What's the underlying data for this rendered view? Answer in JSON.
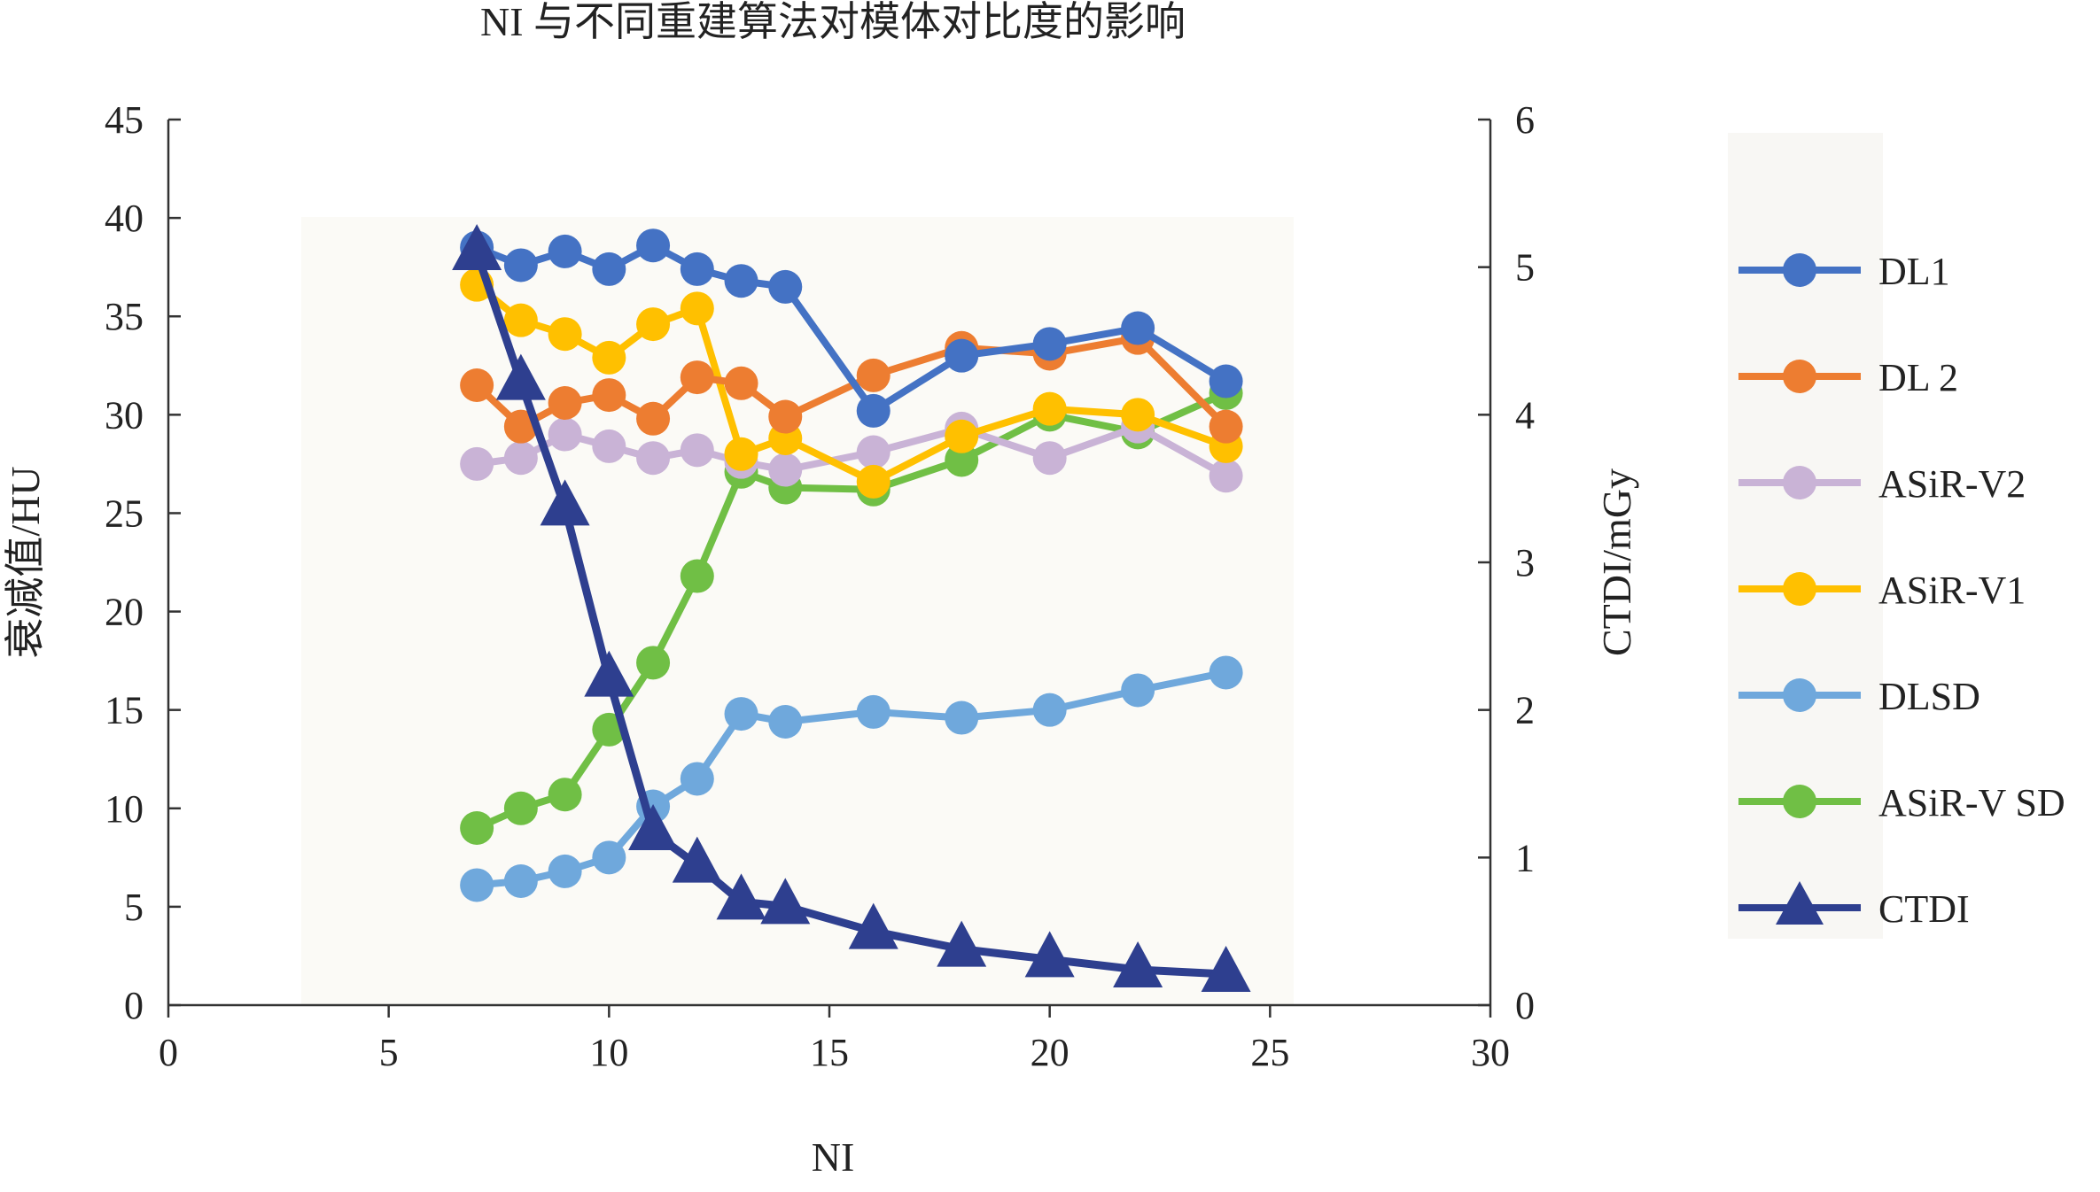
{
  "chart_data": {
    "type": "line",
    "title": "NI 与不同重建算法对模体对比度的影响",
    "xlabel": "NI",
    "ylabel": "衰减值/HU",
    "y2label": "CTDI/mGy",
    "xlim": [
      0,
      30
    ],
    "ylim": [
      0,
      45
    ],
    "y2lim": [
      0,
      6
    ],
    "xticks": [
      0,
      5,
      10,
      15,
      20,
      25,
      30
    ],
    "yticks": [
      0,
      5,
      10,
      15,
      20,
      25,
      30,
      35,
      40,
      45
    ],
    "y2ticks": [
      0,
      1,
      2,
      3,
      4,
      5,
      6
    ],
    "legend_position": "right",
    "grid": false,
    "series": [
      {
        "name": "DL1",
        "axis": "left",
        "marker": "circle",
        "color": "#4472C4",
        "x": [
          7,
          8,
          9,
          10,
          11,
          12,
          13,
          14,
          16,
          18,
          20,
          22,
          24
        ],
        "values": [
          38.5,
          37.6,
          38.3,
          37.4,
          38.6,
          37.4,
          36.8,
          36.5,
          30.2,
          33.0,
          33.6,
          34.4,
          31.7
        ]
      },
      {
        "name": "DL 2",
        "axis": "left",
        "marker": "circle",
        "color": "#ED7D31",
        "x": [
          7,
          8,
          9,
          10,
          11,
          12,
          13,
          14,
          16,
          18,
          20,
          22,
          24
        ],
        "values": [
          31.5,
          29.4,
          30.6,
          31.0,
          29.8,
          31.9,
          31.6,
          29.9,
          32.0,
          33.4,
          33.1,
          33.9,
          29.4
        ]
      },
      {
        "name": "ASiR-V2",
        "axis": "left",
        "marker": "circle",
        "color": "#C9B3D6",
        "x": [
          7,
          8,
          9,
          10,
          11,
          12,
          13,
          14,
          16,
          18,
          20,
          22,
          24
        ],
        "values": [
          27.5,
          27.8,
          29.0,
          28.4,
          27.8,
          28.2,
          27.6,
          27.2,
          28.1,
          29.3,
          27.8,
          29.4,
          26.9
        ]
      },
      {
        "name": "ASiR-V1",
        "axis": "left",
        "marker": "circle",
        "color": "#FFC000",
        "x": [
          7,
          8,
          9,
          10,
          11,
          12,
          13,
          14,
          16,
          18,
          20,
          22,
          24
        ],
        "values": [
          36.6,
          34.8,
          34.1,
          32.9,
          34.6,
          35.4,
          28.0,
          28.8,
          26.6,
          28.9,
          30.3,
          30.0,
          28.4
        ]
      },
      {
        "name": "DLSD",
        "axis": "left",
        "marker": "circle",
        "color": "#6FA8DC",
        "x": [
          7,
          8,
          9,
          10,
          11,
          12,
          13,
          14,
          16,
          18,
          20,
          22,
          24
        ],
        "values": [
          6.1,
          6.3,
          6.8,
          7.5,
          10.1,
          11.5,
          14.8,
          14.4,
          14.9,
          14.6,
          15.0,
          16.0,
          16.9
        ]
      },
      {
        "name": "ASiR-V SD",
        "axis": "left",
        "marker": "circle",
        "color": "#70BF45",
        "x": [
          7,
          8,
          9,
          10,
          11,
          12,
          13,
          14,
          16,
          18,
          20,
          22,
          24
        ],
        "values": [
          9.0,
          10.0,
          10.7,
          14.0,
          17.4,
          21.8,
          27.1,
          26.3,
          26.2,
          27.7,
          30.0,
          29.1,
          31.1
        ]
      },
      {
        "name": "CTDI",
        "axis": "right",
        "marker": "triangle",
        "color": "#2E3F8F",
        "x": [
          7,
          8,
          9,
          10,
          11,
          12,
          13,
          14,
          16,
          18,
          20,
          22,
          24
        ],
        "values": [
          5.1,
          4.22,
          3.37,
          2.21,
          1.17,
          0.95,
          0.7,
          0.67,
          0.5,
          0.38,
          0.31,
          0.24,
          0.21
        ]
      }
    ]
  }
}
